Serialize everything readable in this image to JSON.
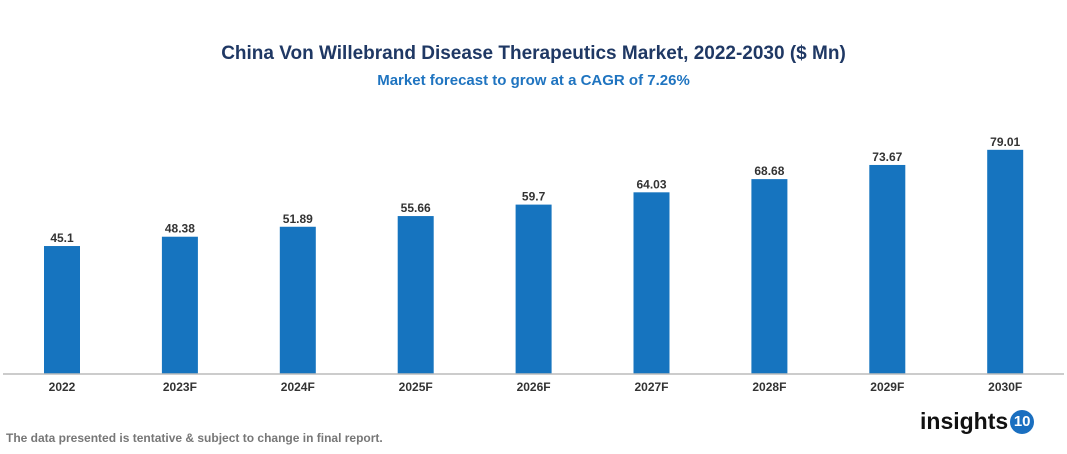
{
  "chart_data": {
    "type": "bar",
    "title": "China Von Willebrand Disease Therapeutics Market, 2022-2030 ($ Mn)",
    "subtitle": "Market forecast to grow at a CAGR of 7.26%",
    "categories": [
      "2022",
      "2023F",
      "2024F",
      "2025F",
      "2026F",
      "2027F",
      "2028F",
      "2029F",
      "2030F"
    ],
    "values": [
      45.1,
      48.38,
      51.89,
      55.66,
      59.7,
      64.03,
      68.68,
      73.67,
      79.01
    ],
    "value_labels": [
      "45.1",
      "48.38",
      "51.89",
      "55.66",
      "59.7",
      "64.03",
      "68.68",
      "73.67",
      "79.01"
    ],
    "xlabel": "",
    "ylabel": "",
    "ylim": [
      0,
      80
    ],
    "grid": false,
    "bar_color": "#1674bf"
  },
  "footnote": "The data presented is tentative & subject to change in final report.",
  "logo": {
    "text": "insights",
    "badge": "10"
  }
}
